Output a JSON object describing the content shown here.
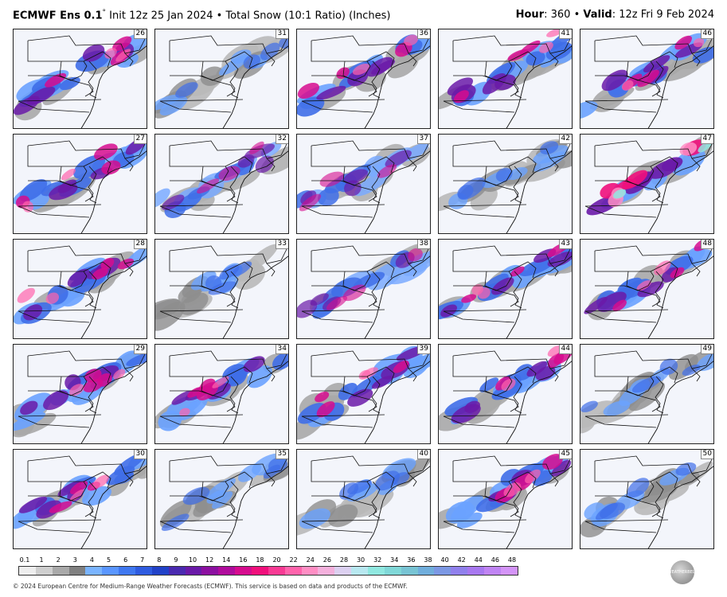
{
  "header": {
    "model": "ECMWF Ens 0.1",
    "degree_symbol": "°",
    "init": " Init 12z 25 Jan 2024",
    "separator": " • ",
    "product": "Total Snow (10:1 Ratio) (Inches)",
    "hour_label": "Hour",
    "hour_value": ": 360",
    "valid_label": "Valid",
    "valid_value": ": 12z Fri 9 Feb 2024"
  },
  "panels": [
    {
      "member": "26",
      "intensity": "heavy"
    },
    {
      "member": "31",
      "intensity": "light"
    },
    {
      "member": "36",
      "intensity": "heavy"
    },
    {
      "member": "41",
      "intensity": "heavy"
    },
    {
      "member": "46",
      "intensity": "heavy"
    },
    {
      "member": "27",
      "intensity": "heavy"
    },
    {
      "member": "32",
      "intensity": "moderate"
    },
    {
      "member": "37",
      "intensity": "moderate"
    },
    {
      "member": "42",
      "intensity": "light"
    },
    {
      "member": "47",
      "intensity": "extreme"
    },
    {
      "member": "28",
      "intensity": "heavy"
    },
    {
      "member": "33",
      "intensity": "light"
    },
    {
      "member": "38",
      "intensity": "moderate"
    },
    {
      "member": "43",
      "intensity": "heavy"
    },
    {
      "member": "48",
      "intensity": "heavy"
    },
    {
      "member": "29",
      "intensity": "heavy"
    },
    {
      "member": "34",
      "intensity": "heavy"
    },
    {
      "member": "39",
      "intensity": "heavy"
    },
    {
      "member": "44",
      "intensity": "heavy"
    },
    {
      "member": "49",
      "intensity": "light"
    },
    {
      "member": "30",
      "intensity": "heavy"
    },
    {
      "member": "35",
      "intensity": "light"
    },
    {
      "member": "40",
      "intensity": "light"
    },
    {
      "member": "45",
      "intensity": "heavy"
    },
    {
      "member": "50",
      "intensity": "light"
    }
  ],
  "colorbar": {
    "ticks": [
      "0.1",
      "1",
      "2",
      "3",
      "4",
      "5",
      "6",
      "7",
      "8",
      "9",
      "10",
      "12",
      "14",
      "16",
      "18",
      "20",
      "22",
      "24",
      "26",
      "28",
      "30",
      "32",
      "34",
      "36",
      "38",
      "40",
      "42",
      "44",
      "46",
      "48"
    ],
    "colors": [
      "#eeeeee",
      "#cfcfcf",
      "#a9a9a9",
      "#808080",
      "#7ab4ff",
      "#5a96ff",
      "#4078f0",
      "#2f5ce0",
      "#2242c8",
      "#4a2ab0",
      "#6a1aa8",
      "#8c10a0",
      "#b00c9c",
      "#d60c8e",
      "#f0107c",
      "#f83a94",
      "#ff64ac",
      "#ff8ec4",
      "#f4b0dc",
      "#dcd0f0",
      "#b8e8f0",
      "#90e8e0",
      "#80d8d8",
      "#78c4d4",
      "#70aedc",
      "#7c98e4",
      "#9080ec",
      "#a878f0",
      "#c084f4",
      "#d494f8"
    ]
  },
  "footer": "© 2024 European Centre for Medium-Range Weather Forecasts (ECMWF). This service is based on data and products of the ECMWF.",
  "logo_text": "WEATHERBELL"
}
